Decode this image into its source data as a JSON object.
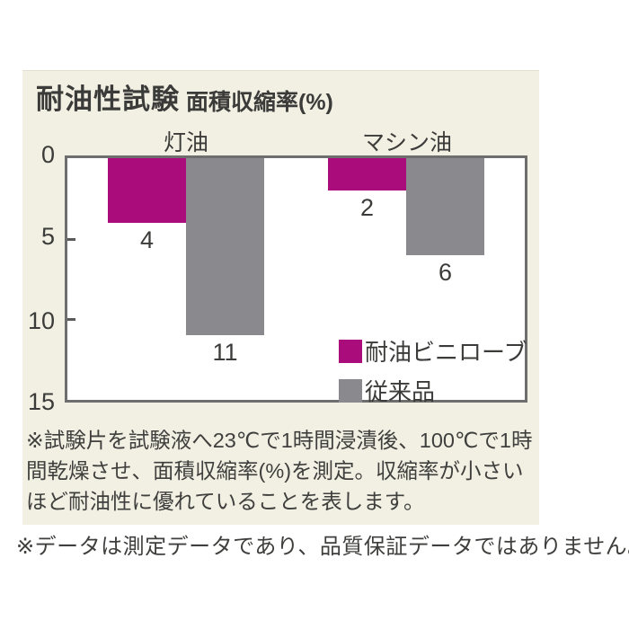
{
  "panel": {
    "title": "耐油性試験",
    "subtitle": "面積収縮率(%)"
  },
  "chart_data": {
    "type": "bar",
    "orientation": "downward-columns",
    "title": "耐油性試験",
    "ylabel": "面積収縮率(%)",
    "categories": [
      "灯油",
      "マシン油"
    ],
    "series": [
      {
        "name": "耐油ビニローブ",
        "color": "#ab0c7c",
        "values": [
          4,
          2
        ]
      },
      {
        "name": "従来品",
        "color": "#8a8a8e",
        "values": [
          11,
          6
        ]
      }
    ],
    "yticks": [
      "0",
      "5",
      "10",
      "15"
    ],
    "ytick_values": [
      0,
      5,
      10,
      15
    ],
    "ylim": [
      0,
      15
    ],
    "grid": false,
    "legend_position": "inside-bottom-right",
    "value_labels": true
  },
  "colors": {
    "card_background": "#f2efe3",
    "plot_border": "#6e6e6e",
    "series1": "#ab0c7c",
    "series2": "#8a8a8e",
    "text": "#3a3a38"
  },
  "footnote": {
    "lines": [
      "※試験片を試験液へ23℃で1時間浸漬後、100℃で1時",
      "間乾燥させ、面積収縮率(%)を測定。収縮率が小さい",
      "ほど耐油性に優れていることを表します。"
    ]
  },
  "bottom_note": "※データは測定データであり、品質保証データではありません。"
}
